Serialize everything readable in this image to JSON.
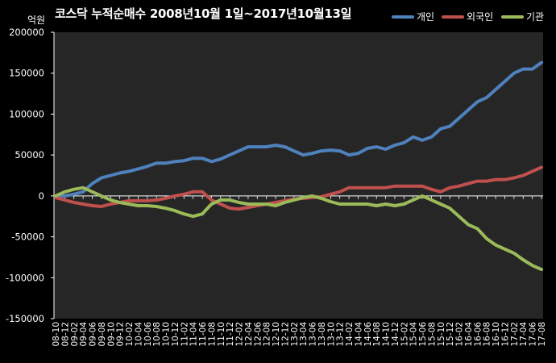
{
  "chart_data": {
    "type": "line",
    "title": "코스닥 누적순매수 2008년10월 1일~2017년10월13일",
    "unit_label": "억원",
    "ylim": [
      -150000,
      200000
    ],
    "y_ticks": [
      200000,
      150000,
      100000,
      50000,
      0,
      -50000,
      -100000,
      -150000
    ],
    "grid": false,
    "legend_position": "top-right",
    "x": [
      "08-10",
      "08-12",
      "09-02",
      "09-04",
      "09-06",
      "09-08",
      "09-10",
      "09-12",
      "10-02",
      "10-04",
      "10-06",
      "10-08",
      "10-10",
      "10-12",
      "11-02",
      "11-04",
      "11-06",
      "11-08",
      "11-10",
      "11-12",
      "12-02",
      "12-04",
      "12-06",
      "12-08",
      "12-10",
      "12-12",
      "13-02",
      "13-04",
      "13-06",
      "13-08",
      "13-10",
      "13-12",
      "14-02",
      "14-04",
      "14-06",
      "14-08",
      "14-10",
      "14-12",
      "15-02",
      "15-04",
      "15-06",
      "15-08",
      "15-10",
      "15-12",
      "16-02",
      "16-04",
      "16-06",
      "16-08",
      "16-10",
      "16-12",
      "17-02",
      "17-04",
      "17-06",
      "17-08"
    ],
    "series": [
      {
        "name": "개인",
        "color": "#4F81BD",
        "values": [
          0,
          0,
          2000,
          5000,
          15000,
          22000,
          25000,
          28000,
          30000,
          33000,
          36000,
          40000,
          40000,
          42000,
          43000,
          46000,
          46000,
          42000,
          45000,
          50000,
          55000,
          60000,
          60000,
          60000,
          62000,
          60000,
          55000,
          50000,
          52000,
          55000,
          56000,
          55000,
          50000,
          52000,
          58000,
          60000,
          57000,
          62000,
          65000,
          72000,
          68000,
          72000,
          82000,
          85000,
          95000,
          105000,
          115000,
          120000,
          130000,
          140000,
          150000,
          155000,
          155000,
          163000
        ]
      },
      {
        "name": "외국인",
        "color": "#C0504D",
        "values": [
          -2000,
          -5000,
          -8000,
          -10000,
          -12000,
          -13000,
          -10000,
          -8000,
          -6000,
          -6000,
          -6000,
          -5000,
          -3000,
          0,
          2000,
          5000,
          5000,
          -5000,
          -10000,
          -15000,
          -16000,
          -14000,
          -12000,
          -10000,
          -8000,
          -6000,
          -4000,
          -3000,
          -2000,
          -1000,
          2000,
          5000,
          10000,
          10000,
          10000,
          10000,
          10000,
          12000,
          12000,
          12000,
          12000,
          8000,
          5000,
          10000,
          12000,
          15000,
          18000,
          18000,
          20000,
          20000,
          22000,
          25000,
          30000,
          35000
        ]
      },
      {
        "name": "기관",
        "color": "#9BBB59",
        "values": [
          0,
          5000,
          8000,
          10000,
          5000,
          0,
          -5000,
          -8000,
          -10000,
          -12000,
          -12000,
          -13000,
          -15000,
          -18000,
          -22000,
          -25000,
          -22000,
          -10000,
          -5000,
          -5000,
          -8000,
          -10000,
          -10000,
          -10000,
          -12000,
          -8000,
          -5000,
          -2000,
          0,
          -3000,
          -7000,
          -10000,
          -10000,
          -10000,
          -10000,
          -12000,
          -10000,
          -12000,
          -10000,
          -5000,
          0,
          -5000,
          -10000,
          -15000,
          -25000,
          -35000,
          -40000,
          -52000,
          -60000,
          -65000,
          -70000,
          -78000,
          -85000,
          -90000
        ]
      }
    ]
  }
}
